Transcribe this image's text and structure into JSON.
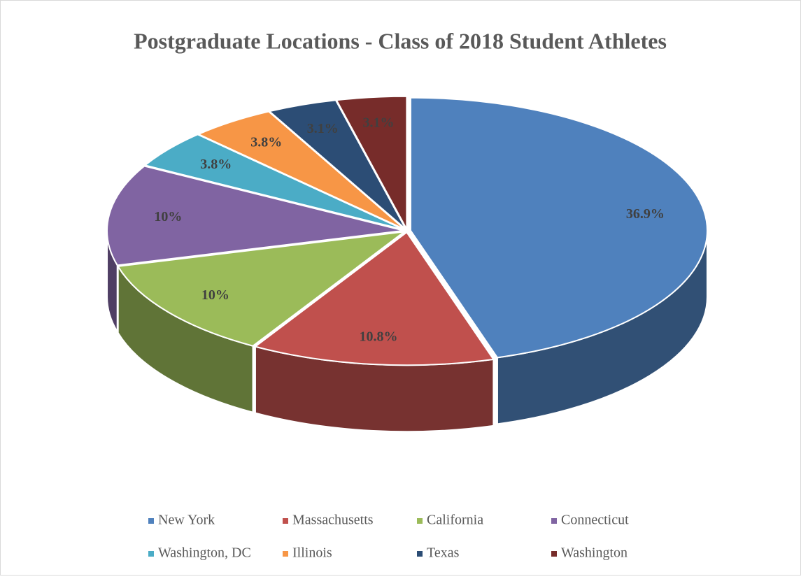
{
  "chart_data": {
    "type": "pie",
    "title": "Postgraduate Locations - Class of 2018 Student Athletes",
    "categories": [
      "New York",
      "Massachusetts",
      "California",
      "Connecticut",
      "Washington, DC",
      "Illinois",
      "Texas",
      "Washington"
    ],
    "values": [
      36.9,
      10.8,
      10,
      10,
      3.8,
      3.8,
      3.1,
      3.1
    ],
    "value_labels": [
      "36.9%",
      "10.8%",
      "10%",
      "10%",
      "3.8%",
      "3.8%",
      "3.1%",
      "3.1%"
    ],
    "colors": [
      "#4f81bd",
      "#c0504d",
      "#9bbb59",
      "#8064a2",
      "#4bacc6",
      "#f79646",
      "#2c4d75",
      "#772c2a"
    ],
    "legend": "bottom"
  }
}
